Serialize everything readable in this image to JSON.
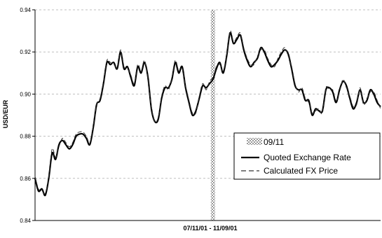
{
  "chart_data": {
    "type": "line",
    "title": "",
    "xlabel": "07/11/01 - 11/09/01",
    "ylabel": "USD/EUR",
    "ylim": [
      0.84,
      0.94
    ],
    "yticks": [
      "0.84",
      "0.86",
      "0.88",
      "0.90",
      "0.92",
      "0.94"
    ],
    "yticks_values": [
      0.84,
      0.86,
      0.88,
      0.9,
      0.92,
      0.94
    ],
    "grid": "horizontal-dashed",
    "legend_position": "right",
    "event_marker": {
      "name": "09/11",
      "index": 52
    },
    "colors": {
      "quoted": "#000000",
      "calculated": "#333333",
      "marker_a": "#9a9a9a",
      "marker_b": "#ffffff",
      "grid": "#bfbfbf"
    },
    "x": [
      0,
      1,
      2,
      3,
      4,
      5,
      6,
      7,
      8,
      9,
      10,
      11,
      12,
      13,
      14,
      15,
      16,
      17,
      18,
      19,
      20,
      21,
      22,
      23,
      24,
      25,
      26,
      27,
      28,
      29,
      30,
      31,
      32,
      33,
      34,
      35,
      36,
      37,
      38,
      39,
      40,
      41,
      42,
      43,
      44,
      45,
      46,
      47,
      48,
      49,
      50,
      51,
      52,
      53,
      54,
      55,
      56,
      57,
      58,
      59,
      60,
      61,
      62,
      63,
      64,
      65,
      66,
      67,
      68,
      69,
      70,
      71,
      72,
      73,
      74,
      75,
      76,
      77,
      78,
      79,
      80,
      81,
      82,
      83,
      84,
      85,
      86,
      87,
      88,
      89,
      90,
      91,
      92,
      93,
      94,
      95,
      96,
      97,
      98,
      99,
      100,
      101
    ],
    "series": [
      {
        "name": "Quoted Exchange Rate",
        "values": [
          0.86,
          0.854,
          0.855,
          0.852,
          0.86,
          0.872,
          0.869,
          0.876,
          0.878,
          0.876,
          0.874,
          0.876,
          0.88,
          0.881,
          0.881,
          0.879,
          0.876,
          0.884,
          0.895,
          0.897,
          0.905,
          0.915,
          0.914,
          0.915,
          0.912,
          0.92,
          0.912,
          0.913,
          0.908,
          0.904,
          0.913,
          0.91,
          0.915,
          0.908,
          0.893,
          0.887,
          0.888,
          0.898,
          0.903,
          0.903,
          0.907,
          0.915,
          0.91,
          0.913,
          0.903,
          0.896,
          0.89,
          0.892,
          0.898,
          0.904,
          0.903,
          0.905,
          0.907,
          0.912,
          0.915,
          0.91,
          0.918,
          0.929,
          0.924,
          0.926,
          0.928,
          0.921,
          0.916,
          0.913,
          0.915,
          0.917,
          0.922,
          0.92,
          0.916,
          0.913,
          0.914,
          0.916,
          0.919,
          0.921,
          0.919,
          0.912,
          0.904,
          0.902,
          0.902,
          0.897,
          0.897,
          0.89,
          0.893,
          0.892,
          0.892,
          0.902,
          0.903,
          0.901,
          0.896,
          0.902,
          0.906,
          0.904,
          0.898,
          0.893,
          0.896,
          0.902,
          0.896,
          0.897,
          0.902,
          0.9,
          0.896,
          0.894
        ]
      },
      {
        "name": "Calculated FX Price",
        "values": [
          0.861,
          0.855,
          0.854,
          0.853,
          0.861,
          0.874,
          0.87,
          0.875,
          0.879,
          0.877,
          0.875,
          0.877,
          0.881,
          0.882,
          0.882,
          0.88,
          0.877,
          0.885,
          0.895,
          0.898,
          0.906,
          0.916,
          0.915,
          0.914,
          0.913,
          0.921,
          0.913,
          0.912,
          0.909,
          0.905,
          0.914,
          0.911,
          0.916,
          0.907,
          0.894,
          0.887,
          0.889,
          0.899,
          0.904,
          0.902,
          0.908,
          0.916,
          0.911,
          0.912,
          0.904,
          0.897,
          0.891,
          0.891,
          0.899,
          0.905,
          0.902,
          0.906,
          0.908,
          0.913,
          0.914,
          0.911,
          0.919,
          0.93,
          0.925,
          0.927,
          0.929,
          0.922,
          0.917,
          0.914,
          0.914,
          0.918,
          0.921,
          0.921,
          0.917,
          0.914,
          0.913,
          0.917,
          0.92,
          0.922,
          0.918,
          0.913,
          0.905,
          0.901,
          0.903,
          0.898,
          0.896,
          0.891,
          0.892,
          0.893,
          0.891,
          0.903,
          0.902,
          0.902,
          0.897,
          0.901,
          0.907,
          0.903,
          0.899,
          0.894,
          0.895,
          0.903,
          0.895,
          0.898,
          0.901,
          0.901,
          0.897,
          0.893
        ]
      }
    ]
  }
}
